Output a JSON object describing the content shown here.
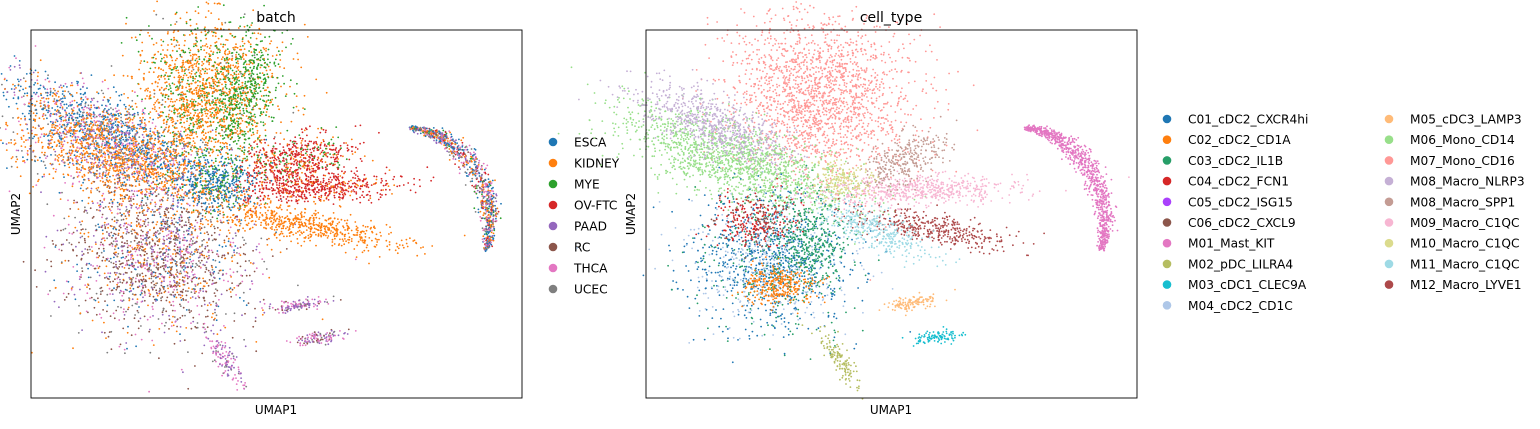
{
  "chart_data": [
    {
      "type": "scatter",
      "title": "batch",
      "xlabel": "UMAP1",
      "ylabel": "UMAP2",
      "grid": false,
      "ticks": false,
      "legend_position": "right",
      "legend": [
        {
          "name": "ESCA",
          "color": "#1f77b4"
        },
        {
          "name": "KIDNEY",
          "color": "#ff7f0e"
        },
        {
          "name": "MYE",
          "color": "#2ca02c"
        },
        {
          "name": "OV-FTC",
          "color": "#d62728"
        },
        {
          "name": "PAAD",
          "color": "#9467bd"
        },
        {
          "name": "RC",
          "color": "#8c564b"
        },
        {
          "name": "THCA",
          "color": "#e377c2"
        },
        {
          "name": "UCEC",
          "color": "#7f7f7f"
        }
      ]
    },
    {
      "type": "scatter",
      "title": "cell_type",
      "xlabel": "UMAP1",
      "ylabel": "UMAP2",
      "grid": false,
      "ticks": false,
      "legend_position": "right",
      "legend_columns": 2,
      "legend": [
        {
          "name": "C01_cDC2_CXCR4hi",
          "color": "#1f77b4"
        },
        {
          "name": "C02_cDC2_CD1A",
          "color": "#ff7f0e"
        },
        {
          "name": "C03_cDC2_IL1B",
          "color": "#279e68"
        },
        {
          "name": "C04_cDC2_FCN1",
          "color": "#d62728"
        },
        {
          "name": "C05_cDC2_ISG15",
          "color": "#aa40fc"
        },
        {
          "name": "C06_cDC2_CXCL9",
          "color": "#8c564b"
        },
        {
          "name": "M01_Mast_KIT",
          "color": "#e377c2"
        },
        {
          "name": "M02_pDC_LILRA4",
          "color": "#b5bd61"
        },
        {
          "name": "M03_cDC1_CLEC9A",
          "color": "#17becf"
        },
        {
          "name": "M04_cDC2_CD1C",
          "color": "#aec7e8"
        },
        {
          "name": "M05_cDC3_LAMP3",
          "color": "#ffbb78"
        },
        {
          "name": "M06_Mono_CD14",
          "color": "#98df8a"
        },
        {
          "name": "M07_Mono_CD16",
          "color": "#ff9896"
        },
        {
          "name": "M08_Macro_NLRP3",
          "color": "#c5b0d5"
        },
        {
          "name": "M08_Macro_SPP1",
          "color": "#c49c94"
        },
        {
          "name": "M09_Macro_C1QC",
          "color": "#f7b6d2"
        },
        {
          "name": "M10_Macro_C1QC",
          "color": "#dbdb8d"
        },
        {
          "name": "M11_Macro_C1QC",
          "color": "#9edae5"
        },
        {
          "name": "M12_Macro_LYVE1",
          "color": "#ad494a"
        }
      ]
    }
  ]
}
